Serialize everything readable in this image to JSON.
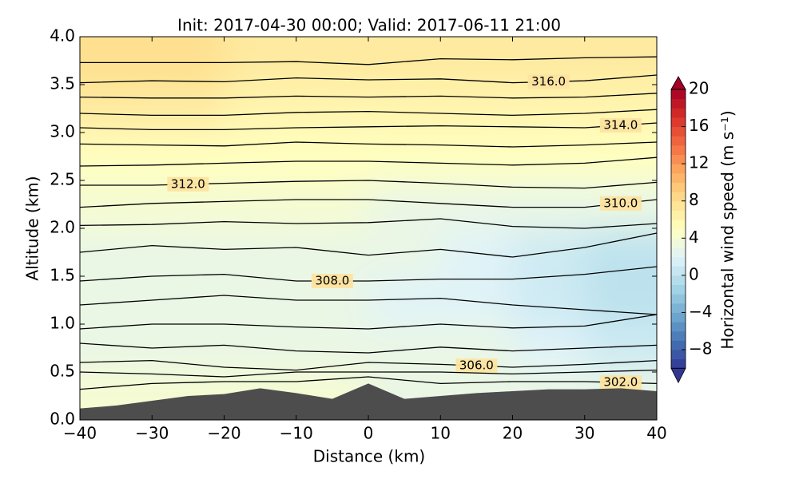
{
  "chart_data": {
    "type": "cross-section",
    "title": "Init: 2017-04-30 00:00; Valid: 2017-06-11 21:00",
    "xlabel": "Distance (km)",
    "ylabel": "Altitude (km)",
    "xlim": [
      -40,
      40
    ],
    "ylim": [
      0,
      4
    ],
    "xticks": [
      {
        "value": -40,
        "label": "−40"
      },
      {
        "value": -30,
        "label": "−30"
      },
      {
        "value": -20,
        "label": "−20"
      },
      {
        "value": -10,
        "label": "−10"
      },
      0,
      10,
      20,
      30,
      40
    ],
    "yticks": [
      {
        "value": 0,
        "label": "0.0"
      },
      {
        "value": 0.5,
        "label": "0.5"
      },
      {
        "value": 1,
        "label": "1.0"
      },
      {
        "value": 1.5,
        "label": "1.5"
      },
      {
        "value": 2,
        "label": "2.0"
      },
      {
        "value": 2.5,
        "label": "2.5"
      },
      {
        "value": 3,
        "label": "3.0"
      },
      {
        "value": 3.5,
        "label": "3.5"
      },
      {
        "value": 4,
        "label": "4.0"
      }
    ],
    "field": {
      "x": [
        -35,
        -25,
        -15,
        -5,
        5,
        15,
        25,
        35
      ],
      "z": [
        0.25,
        0.75,
        1.25,
        1.75,
        2.25,
        2.75,
        3.25,
        3.75
      ],
      "values": [
        [
          4,
          4,
          4,
          4,
          3,
          3,
          3,
          3
        ],
        [
          3,
          3,
          3,
          3,
          3,
          3,
          2,
          1
        ],
        [
          3,
          3,
          3,
          3,
          2,
          2,
          1,
          0
        ],
        [
          3,
          3,
          3,
          3,
          3,
          2,
          1,
          0
        ],
        [
          4,
          4,
          4,
          4,
          3,
          3,
          3,
          3
        ],
        [
          5,
          5,
          5,
          5,
          5,
          5,
          5,
          5
        ],
        [
          7,
          7,
          6,
          6,
          6,
          6,
          6,
          6
        ],
        [
          8,
          8,
          7,
          7,
          7,
          7,
          7,
          7
        ]
      ]
    },
    "contour_x": [
      -40,
      -30,
      -20,
      -10,
      0,
      10,
      20,
      30,
      40
    ],
    "contours": [
      {
        "values": [
          3.73,
          3.73,
          3.73,
          3.74,
          3.71,
          3.77,
          3.76,
          3.78,
          3.79
        ]
      },
      {
        "label": "316.0",
        "values": [
          3.52,
          3.54,
          3.53,
          3.57,
          3.55,
          3.56,
          3.52,
          3.54,
          3.6
        ]
      },
      {
        "values": [
          3.37,
          3.36,
          3.36,
          3.38,
          3.37,
          3.38,
          3.36,
          3.37,
          3.41
        ]
      },
      {
        "values": [
          3.2,
          3.18,
          3.18,
          3.21,
          3.22,
          3.2,
          3.18,
          3.2,
          3.24
        ]
      },
      {
        "label": "314.0",
        "values": [
          3.05,
          3.03,
          3.03,
          3.05,
          3.06,
          3.07,
          3.06,
          3.05,
          3.1
        ]
      },
      {
        "values": [
          2.88,
          2.87,
          2.86,
          2.9,
          2.88,
          2.87,
          2.85,
          2.87,
          2.9
        ]
      },
      {
        "values": [
          2.65,
          2.66,
          2.68,
          2.7,
          2.7,
          2.68,
          2.66,
          2.68,
          2.74
        ]
      },
      {
        "label": "312.0",
        "values": [
          2.45,
          2.45,
          2.47,
          2.49,
          2.5,
          2.47,
          2.43,
          2.42,
          2.48
        ]
      },
      {
        "label": "310.0",
        "values": [
          2.22,
          2.26,
          2.28,
          2.3,
          2.3,
          2.26,
          2.22,
          2.22,
          2.3
        ]
      },
      {
        "values": [
          2.03,
          2.04,
          2.07,
          2.05,
          2.06,
          2.1,
          2.02,
          2.0,
          2.05
        ]
      },
      {
        "values": [
          1.75,
          1.82,
          1.78,
          1.8,
          1.72,
          1.78,
          1.7,
          1.8,
          1.95
        ]
      },
      {
        "label": "308.0",
        "values": [
          1.45,
          1.5,
          1.52,
          1.45,
          1.45,
          1.47,
          1.47,
          1.52,
          1.6
        ]
      },
      {
        "values": [
          1.2,
          1.25,
          1.3,
          1.25,
          1.25,
          1.27,
          1.2,
          1.15,
          1.1
        ]
      },
      {
        "values": [
          0.95,
          1.0,
          1.0,
          0.97,
          0.95,
          1.0,
          0.96,
          0.98,
          1.1
        ]
      },
      {
        "values": [
          0.8,
          0.75,
          0.78,
          0.72,
          0.7,
          0.76,
          0.72,
          0.75,
          0.78
        ]
      },
      {
        "label": "306.0",
        "values": [
          0.6,
          0.62,
          0.55,
          0.52,
          0.6,
          0.58,
          0.55,
          0.58,
          0.62
        ]
      },
      {
        "values": [
          0.5,
          0.48,
          0.45,
          0.5,
          0.5,
          0.5,
          0.48,
          0.5,
          0.52
        ]
      },
      {
        "label": "302.0",
        "values": [
          0.32,
          0.38,
          0.4,
          0.4,
          0.45,
          0.38,
          0.4,
          0.4,
          0.38
        ]
      }
    ],
    "terrain": {
      "color": "#4d4d4d",
      "x": [
        -40,
        -35,
        -30,
        -25,
        -20,
        -15,
        -10,
        -5,
        0,
        5,
        10,
        15,
        20,
        25,
        30,
        35,
        40
      ],
      "values": [
        0.12,
        0.15,
        0.2,
        0.25,
        0.27,
        0.33,
        0.28,
        0.22,
        0.38,
        0.22,
        0.25,
        0.28,
        0.3,
        0.32,
        0.32,
        0.33,
        0.3
      ]
    },
    "colorbar": {
      "label": "Horizontal wind speed (m s⁻¹)",
      "clim": [
        -10,
        20
      ],
      "ticks": [
        {
          "value": -8,
          "label": "−8"
        },
        {
          "value": -4,
          "label": "−4"
        },
        0,
        4,
        8,
        12,
        16,
        20
      ],
      "colors": [
        "#313695",
        "#4575b4",
        "#74add1",
        "#abd9e9",
        "#e0f3f8",
        "#ffffbf",
        "#fee090",
        "#fdae61",
        "#f46d43",
        "#d73027",
        "#a50026"
      ]
    }
  }
}
